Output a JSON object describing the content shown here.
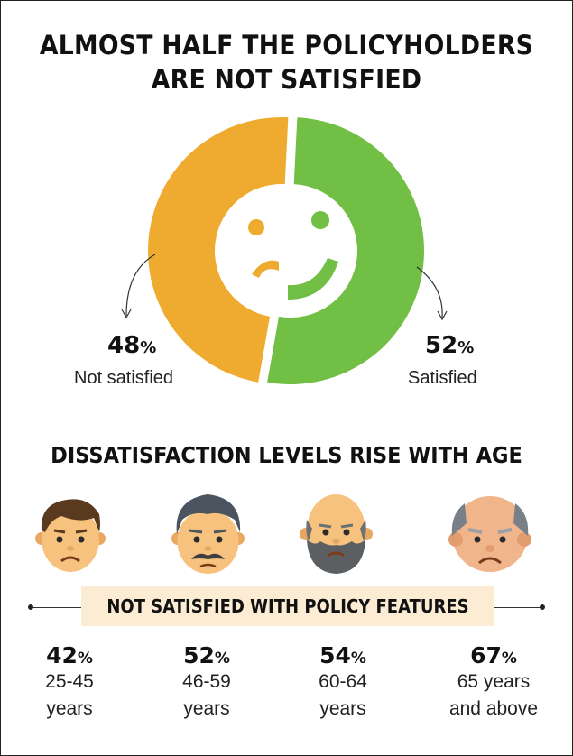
{
  "title_line1": "ALMOST HALF THE POLICYHOLDERS",
  "title_line2": "ARE NOT SATISFIED",
  "chart_data": [
    {
      "type": "pie",
      "title": "ALMOST HALF THE POLICYHOLDERS ARE NOT SATISFIED",
      "slices": [
        {
          "label": "Not satisfied",
          "value": 48,
          "color": "#efab2f"
        },
        {
          "label": "Satisfied",
          "value": 52,
          "color": "#71bf44"
        }
      ],
      "unit": "%"
    },
    {
      "type": "table",
      "title": "DISSATISFACTION LEVELS RISE WITH AGE",
      "series_label": "NOT SATISFIED WITH POLICY FEATURES",
      "categories": [
        "25-45 years",
        "46-59 years",
        "60-64 years",
        "65 years and above"
      ],
      "values": [
        42,
        52,
        54,
        67
      ],
      "unit": "%"
    }
  ],
  "donut": {
    "not_satisfied": {
      "value": "48",
      "label": "Not satisfied"
    },
    "satisfied": {
      "value": "52",
      "label": "Satisfied"
    },
    "percent_sign": "%"
  },
  "subtitle": "DISSATISFACTION LEVELS RISE WITH AGE",
  "banner": "NOT SATISFIED WITH POLICY FEATURES",
  "ages": [
    {
      "value": "42",
      "line1": "25-45",
      "line2": "years"
    },
    {
      "value": "52",
      "line1": "46-59",
      "line2": "years"
    },
    {
      "value": "54",
      "line1": "60-64",
      "line2": "years"
    },
    {
      "value": "67",
      "line1": "65 years",
      "line2": "and above"
    }
  ],
  "icons": [
    "young-man-sad-icon",
    "mustache-man-sad-icon",
    "bearded-bald-man-sad-icon",
    "elderly-man-sad-icon"
  ],
  "colors": {
    "not_satisfied": "#efab2f",
    "satisfied": "#71bf44",
    "banner_bg": "#fbecd3",
    "skin": "#f6c27e"
  }
}
